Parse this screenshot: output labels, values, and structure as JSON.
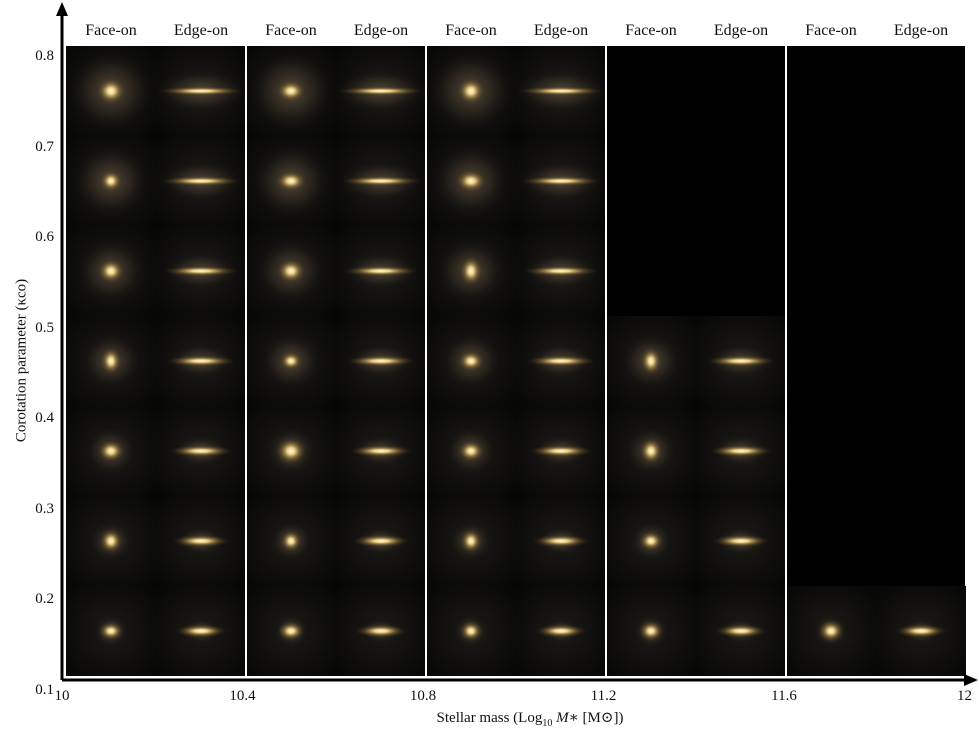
{
  "figure": {
    "column_headers": [
      "Face-on",
      "Edge-on",
      "Face-on",
      "Edge-on",
      "Face-on",
      "Edge-on",
      "Face-on",
      "Edge-on",
      "Face-on",
      "Edge-on"
    ],
    "y_axis": {
      "label": "Corotation parameter (κco)",
      "ticks": [
        "0.8",
        "0.7",
        "0.6",
        "0.5",
        "0.4",
        "0.3",
        "0.2",
        "0.1"
      ]
    },
    "x_axis": {
      "label_prefix": "Stellar mass (Log",
      "label_sub": "10",
      "label_var": "M",
      "label_suffix": "∗ [M⊙])",
      "ticks": [
        "10",
        "10.4",
        "10.8",
        "11.2",
        "11.6",
        "12"
      ]
    },
    "mass_bins": [
      {
        "rows_with_galaxies": [
          0.8,
          0.7,
          0.6,
          0.5,
          0.4,
          0.3,
          0.2
        ]
      },
      {
        "rows_with_galaxies": [
          0.8,
          0.7,
          0.6,
          0.5,
          0.4,
          0.3,
          0.2
        ]
      },
      {
        "rows_with_galaxies": [
          0.8,
          0.7,
          0.6,
          0.5,
          0.4,
          0.3,
          0.2
        ]
      },
      {
        "rows_with_galaxies": [
          0.5,
          0.4,
          0.3,
          0.2
        ]
      },
      {
        "rows_with_galaxies": [
          0.2
        ]
      }
    ],
    "colors": {
      "background_panel": "#000000",
      "galaxy_core": "#fff4d0",
      "galaxy_glow": "#c9a35a",
      "divider": "#ffffff"
    }
  }
}
